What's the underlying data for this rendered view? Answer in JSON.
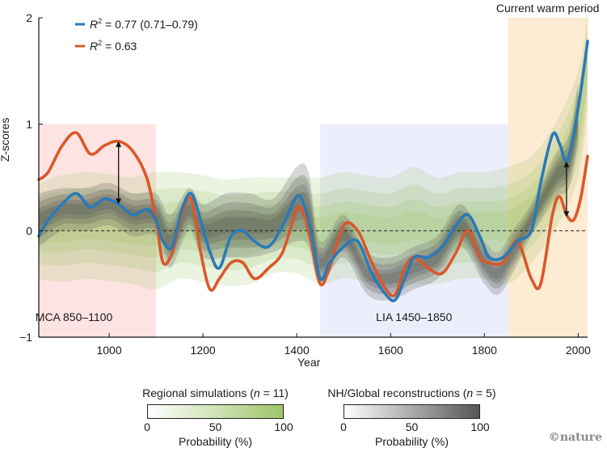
{
  "chart_data": {
    "type": "line",
    "title": "",
    "xlabel": "Year",
    "ylabel": "Z-scores",
    "xlim": [
      850,
      2020
    ],
    "ylim": [
      -1,
      2
    ],
    "xticks": [
      1000,
      1200,
      1400,
      1600,
      1800,
      2000
    ],
    "xtick_labels": [
      "1000",
      "1200",
      "1400",
      "1600",
      "1800",
      "2000"
    ],
    "yticks": [
      -1,
      0,
      1,
      2
    ],
    "ytick_labels": [
      "−1",
      "0",
      "1",
      "2"
    ],
    "zero_line": "dashed",
    "grid": false,
    "legend_position": "top-left",
    "periods": [
      {
        "name": "MCA 850–1100",
        "start": 850,
        "end": 1100,
        "ymax": 1,
        "color": "#fde3e1"
      },
      {
        "name": "LIA 1450–1850",
        "start": 1450,
        "end": 1850,
        "ymax": 1,
        "color": "#eceefb"
      },
      {
        "name": "Current warm period",
        "start": 1850,
        "end": 2020,
        "ymax": 2,
        "color": "#fdebd3"
      }
    ],
    "series": [
      {
        "name": "R² = 0.77 (0.71–0.79)",
        "color": "#2a7ab8",
        "x": [
          850,
          870,
          900,
          930,
          960,
          990,
          1020,
          1050,
          1080,
          1100,
          1115,
          1135,
          1155,
          1175,
          1195,
          1215,
          1235,
          1260,
          1285,
          1310,
          1340,
          1370,
          1400,
          1415,
          1430,
          1450,
          1470,
          1500,
          1530,
          1560,
          1590,
          1610,
          1630,
          1650,
          1680,
          1710,
          1740,
          1765,
          1790,
          1810,
          1840,
          1870,
          1900,
          1920,
          1945,
          1960,
          1975,
          1990,
          2005,
          2020
        ],
        "values": [
          -0.05,
          0.1,
          0.25,
          0.35,
          0.22,
          0.3,
          0.25,
          0.15,
          0.2,
          0.1,
          -0.1,
          -0.15,
          0.2,
          0.35,
          0.1,
          -0.2,
          -0.35,
          -0.05,
          0.0,
          -0.1,
          -0.15,
          0.05,
          0.32,
          0.25,
          0.0,
          -0.45,
          -0.3,
          -0.15,
          -0.1,
          -0.4,
          -0.6,
          -0.65,
          -0.45,
          -0.25,
          -0.25,
          -0.15,
          0.05,
          0.15,
          -0.05,
          -0.25,
          -0.25,
          -0.1,
          0.0,
          0.45,
          0.9,
          0.82,
          0.65,
          0.9,
          1.3,
          1.78
        ]
      },
      {
        "name": "R² = 0.63",
        "color": "#d9582a",
        "x": [
          850,
          870,
          900,
          930,
          960,
          990,
          1020,
          1050,
          1080,
          1100,
          1115,
          1135,
          1155,
          1175,
          1195,
          1215,
          1235,
          1260,
          1285,
          1310,
          1340,
          1370,
          1400,
          1415,
          1430,
          1450,
          1470,
          1500,
          1530,
          1560,
          1590,
          1610,
          1630,
          1650,
          1680,
          1710,
          1740,
          1765,
          1790,
          1810,
          1840,
          1870,
          1900,
          1920,
          1945,
          1960,
          1975,
          1990,
          2005,
          2020
        ],
        "values": [
          0.48,
          0.55,
          0.8,
          0.92,
          0.72,
          0.8,
          0.84,
          0.75,
          0.5,
          0.1,
          -0.3,
          -0.2,
          0.15,
          0.3,
          -0.2,
          -0.55,
          -0.45,
          -0.3,
          -0.3,
          -0.45,
          -0.35,
          -0.2,
          0.2,
          0.15,
          -0.1,
          -0.5,
          -0.35,
          0.05,
          0.0,
          -0.3,
          -0.55,
          -0.6,
          -0.35,
          -0.25,
          -0.35,
          -0.4,
          -0.2,
          0.0,
          -0.25,
          -0.3,
          -0.3,
          -0.1,
          -0.45,
          -0.5,
          0.15,
          0.32,
          0.15,
          0.1,
          0.3,
          0.7
        ]
      }
    ],
    "bands": [
      {
        "name": "Regional simulations (n = 11)",
        "color": "#8fbf5a",
        "x": [
          850,
          900,
          950,
          1000,
          1050,
          1100,
          1150,
          1200,
          1250,
          1300,
          1350,
          1400,
          1450,
          1500,
          1550,
          1600,
          1650,
          1700,
          1750,
          1800,
          1850,
          1900,
          1950,
          2000,
          2020
        ],
        "center": [
          0.0,
          0.02,
          0.05,
          0.03,
          0.0,
          0.0,
          0.05,
          0.02,
          -0.02,
          0.0,
          0.05,
          0.05,
          0.0,
          0.05,
          0.02,
          0.0,
          0.05,
          0.0,
          0.05,
          0.05,
          0.05,
          0.2,
          0.5,
          1.0,
          1.6
        ],
        "spread": [
          0.45,
          0.5,
          0.5,
          0.5,
          0.5,
          0.55,
          0.5,
          0.5,
          0.5,
          0.5,
          0.45,
          0.45,
          0.5,
          0.5,
          0.5,
          0.5,
          0.55,
          0.5,
          0.5,
          0.5,
          0.55,
          0.5,
          0.5,
          0.5,
          0.45
        ]
      },
      {
        "name": "NH/Global reconstructions (n = 5)",
        "color": "#4a4a4a",
        "x": [
          850,
          900,
          950,
          1000,
          1050,
          1100,
          1130,
          1170,
          1200,
          1250,
          1300,
          1350,
          1400,
          1425,
          1450,
          1500,
          1550,
          1600,
          1650,
          1700,
          1750,
          1800,
          1830,
          1860,
          1900,
          1950,
          1980,
          2000
        ],
        "center": [
          0.1,
          0.2,
          0.2,
          0.25,
          0.15,
          0.15,
          -0.1,
          0.2,
          0.0,
          0.05,
          0.05,
          0.05,
          0.25,
          0.2,
          -0.3,
          -0.05,
          -0.4,
          -0.45,
          -0.35,
          -0.25,
          0.05,
          -0.3,
          -0.4,
          -0.2,
          0.1,
          0.5,
          0.65,
          1.1
        ],
        "spread": [
          0.25,
          0.2,
          0.2,
          0.2,
          0.2,
          0.2,
          0.25,
          0.2,
          0.25,
          0.3,
          0.3,
          0.25,
          0.35,
          0.35,
          0.2,
          0.2,
          0.2,
          0.2,
          0.2,
          0.2,
          0.2,
          0.2,
          0.2,
          0.2,
          0.15,
          0.2,
          0.25,
          0.3
        ]
      }
    ],
    "annotations": [
      {
        "type": "double-arrow",
        "x": 1020,
        "y_from": 0.25,
        "y_to": 0.84
      },
      {
        "type": "double-arrow",
        "x": 1975,
        "y_from": 0.13,
        "y_to": 0.65
      }
    ],
    "colorbars": [
      {
        "title_prefix": "Regional simulations (",
        "title_n": "n",
        "title_suffix": " = 11)",
        "ticks": [
          "0",
          "50",
          "100"
        ],
        "label": "Probability (%)",
        "from": "#ffffff",
        "to": "#9fc56a"
      },
      {
        "title_prefix": "NH/Global reconstructions (",
        "title_n": "n",
        "title_suffix": " = 5)",
        "ticks": [
          "0",
          "50",
          "100"
        ],
        "label": "Probability (%)",
        "from": "#ffffff",
        "to": "#555555"
      }
    ]
  },
  "legend": {
    "items": [
      {
        "prefix": "R",
        "sup": "2",
        "text": " = 0.77 (0.71–0.79)"
      },
      {
        "prefix": "R",
        "sup": "2",
        "text": " = 0.63"
      }
    ]
  },
  "credit": "©nature"
}
